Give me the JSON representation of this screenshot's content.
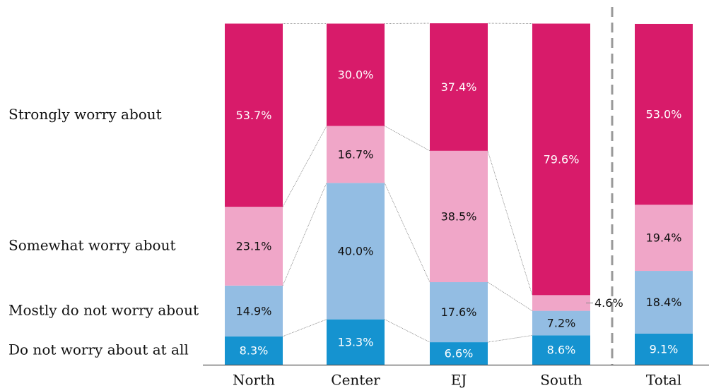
{
  "chart_data": {
    "type": "bar",
    "stacked": true,
    "categories": [
      "North",
      "Center",
      "EJ",
      "South",
      "Total"
    ],
    "series": [
      {
        "name": "Do not worry about at all",
        "color": "#1593d0",
        "values": [
          8.3,
          13.3,
          6.6,
          8.6,
          9.1
        ],
        "value_labels": [
          "8.3%",
          "13.3%",
          "6.6%",
          "8.6%",
          "9.1%"
        ]
      },
      {
        "name": "Mostly do not worry about",
        "color": "#93bde3",
        "values": [
          14.9,
          40,
          17.6,
          7.2,
          18.4
        ],
        "value_labels": [
          "14.9%",
          "40.0%",
          "17.6%",
          "7.2%",
          "18.4%"
        ]
      },
      {
        "name": "Somewhat worry about",
        "color": "#f0a6c8",
        "values": [
          23.1,
          16.7,
          38.5,
          4.6,
          19.4
        ],
        "value_labels": [
          "23.1%",
          "16.7%",
          "38.5%",
          "4.6%",
          "19.4%"
        ]
      },
      {
        "name": "Strongly worry about",
        "color": "#d81b6a",
        "values": [
          53.7,
          30,
          37.4,
          79.6,
          53
        ],
        "value_labels": [
          "53.7%",
          "30.0%",
          "37.4%",
          "79.6%",
          "53.0%"
        ]
      }
    ]
  }
}
